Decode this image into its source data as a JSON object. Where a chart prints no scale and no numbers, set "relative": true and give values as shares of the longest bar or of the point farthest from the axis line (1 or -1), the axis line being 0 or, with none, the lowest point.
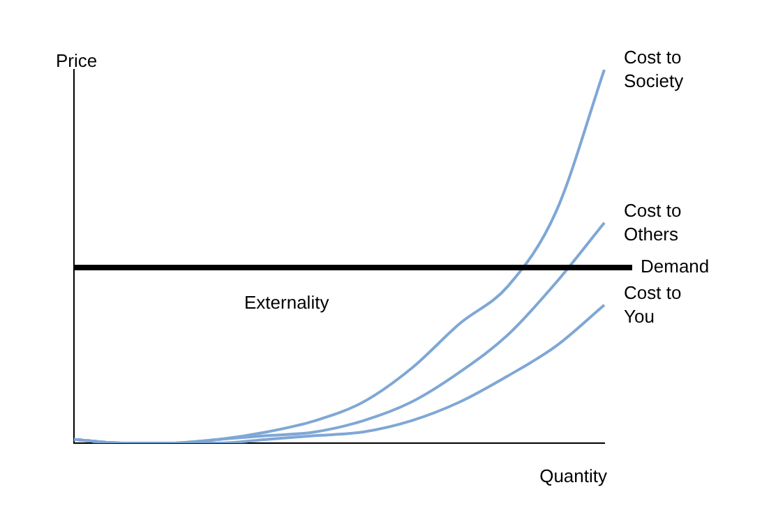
{
  "chart_data": {
    "type": "line",
    "relative": true,
    "xlabel": "Quantity",
    "ylabel": "Price",
    "categories": [
      null,
      null,
      null,
      null,
      null,
      null,
      null,
      null,
      null,
      null,
      null,
      null
    ],
    "series": [
      {
        "name": "Cost to Society",
        "color": "#7fa7d6",
        "values": [
          0.01,
          0,
          0,
          0.01,
          0.03,
          0.06,
          0.11,
          0.2,
          0.32,
          0.42,
          0.62,
          1.0
        ]
      },
      {
        "name": "Cost to Others",
        "color": "#7fa7d6",
        "values": [
          0.01,
          0,
          0,
          0.01,
          0.02,
          0.03,
          0.06,
          0.11,
          0.19,
          0.29,
          0.43,
          0.59
        ]
      },
      {
        "name": "Cost to You",
        "color": "#7fa7d6",
        "values": [
          0.01,
          0,
          0,
          0,
          0.01,
          0.02,
          0.03,
          0.06,
          0.11,
          0.18,
          0.26,
          0.37
        ]
      }
    ],
    "ref_lines": [
      {
        "axis": "y",
        "value": 0.47,
        "label": "Demand",
        "color": "#000000"
      }
    ],
    "annotations": [
      "Externality"
    ],
    "grid": false,
    "legend": false,
    "marker": "none",
    "line_style": "solid"
  }
}
